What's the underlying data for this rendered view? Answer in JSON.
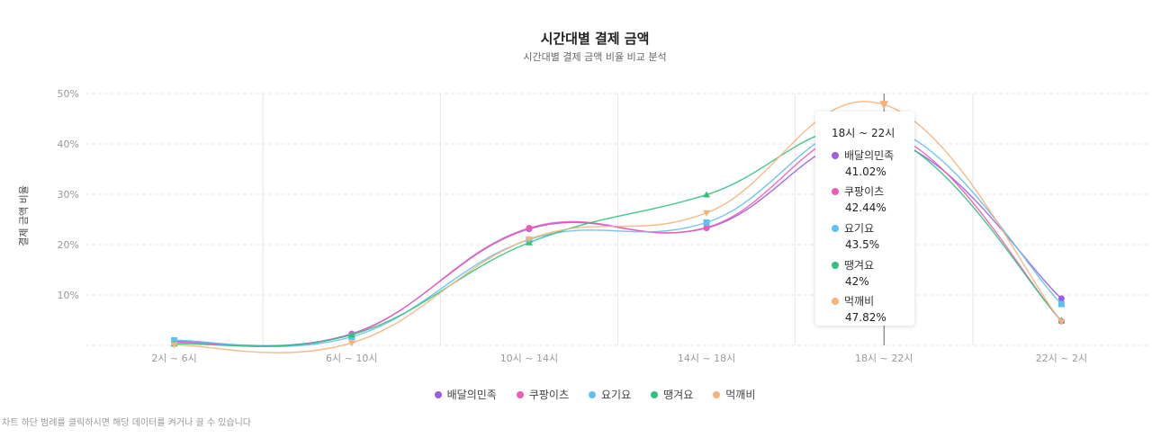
{
  "header": {
    "title": "시간대별 결제 금액",
    "subtitle": "시간대별 결제 금액 비율 비교 분석"
  },
  "footnote": "차트 하단 범례를 클릭하시면 해당 데이터를 켜거나 끌 수 있습니다",
  "tooltip": {
    "title": "18시 ~ 22시",
    "items": [
      {
        "name": "배달의민족",
        "value": "41.02%",
        "color": "#9b5de5"
      },
      {
        "name": "쿠팡이츠",
        "value": "42.44%",
        "color": "#f15bb5"
      },
      {
        "name": "요기요",
        "value": "43.5%",
        "color": "#5ec2f0"
      },
      {
        "name": "땡겨요",
        "value": "42%",
        "color": "#2ec27e"
      },
      {
        "name": "먹깨비",
        "value": "47.82%",
        "color": "#f7b27a"
      }
    ]
  },
  "chart_data": {
    "type": "line",
    "title": "시간대별 결제 금액",
    "subtitle": "시간대별 결제 금액 비율 비교 분석",
    "xlabel": "",
    "ylabel": "결제 금액 비율",
    "categories": [
      "2시 ~ 6시",
      "6시 ~ 10시",
      "10시 ~ 14시",
      "14시 ~ 18시",
      "18시 ~ 22시",
      "22시 ~ 2시"
    ],
    "yticks": [
      "10%",
      "20%",
      "30%",
      "40%",
      "50%"
    ],
    "ylim": [
      0,
      50
    ],
    "grid": true,
    "legend_position": "bottom",
    "series": [
      {
        "name": "배달의민족",
        "color": "#9b5de5",
        "marker": "circle",
        "values": [
          0.8,
          2.3,
          23.1,
          23.3,
          41.02,
          9.3
        ]
      },
      {
        "name": "쿠팡이츠",
        "color": "#f15bb5",
        "marker": "circle",
        "values": [
          0.6,
          2.2,
          23.3,
          23.4,
          42.44,
          4.8
        ]
      },
      {
        "name": "요기요",
        "color": "#5ec2f0",
        "marker": "square",
        "values": [
          1.0,
          1.7,
          21.0,
          24.4,
          43.5,
          8.2
        ]
      },
      {
        "name": "땡겨요",
        "color": "#2ec27e",
        "marker": "triangle",
        "values": [
          0.3,
          2.1,
          20.4,
          29.9,
          42.0,
          4.9
        ]
      },
      {
        "name": "먹깨비",
        "color": "#f7b27a",
        "marker": "triangle-down",
        "values": [
          0.1,
          0.5,
          21.1,
          26.3,
          47.82,
          4.7
        ]
      }
    ]
  }
}
